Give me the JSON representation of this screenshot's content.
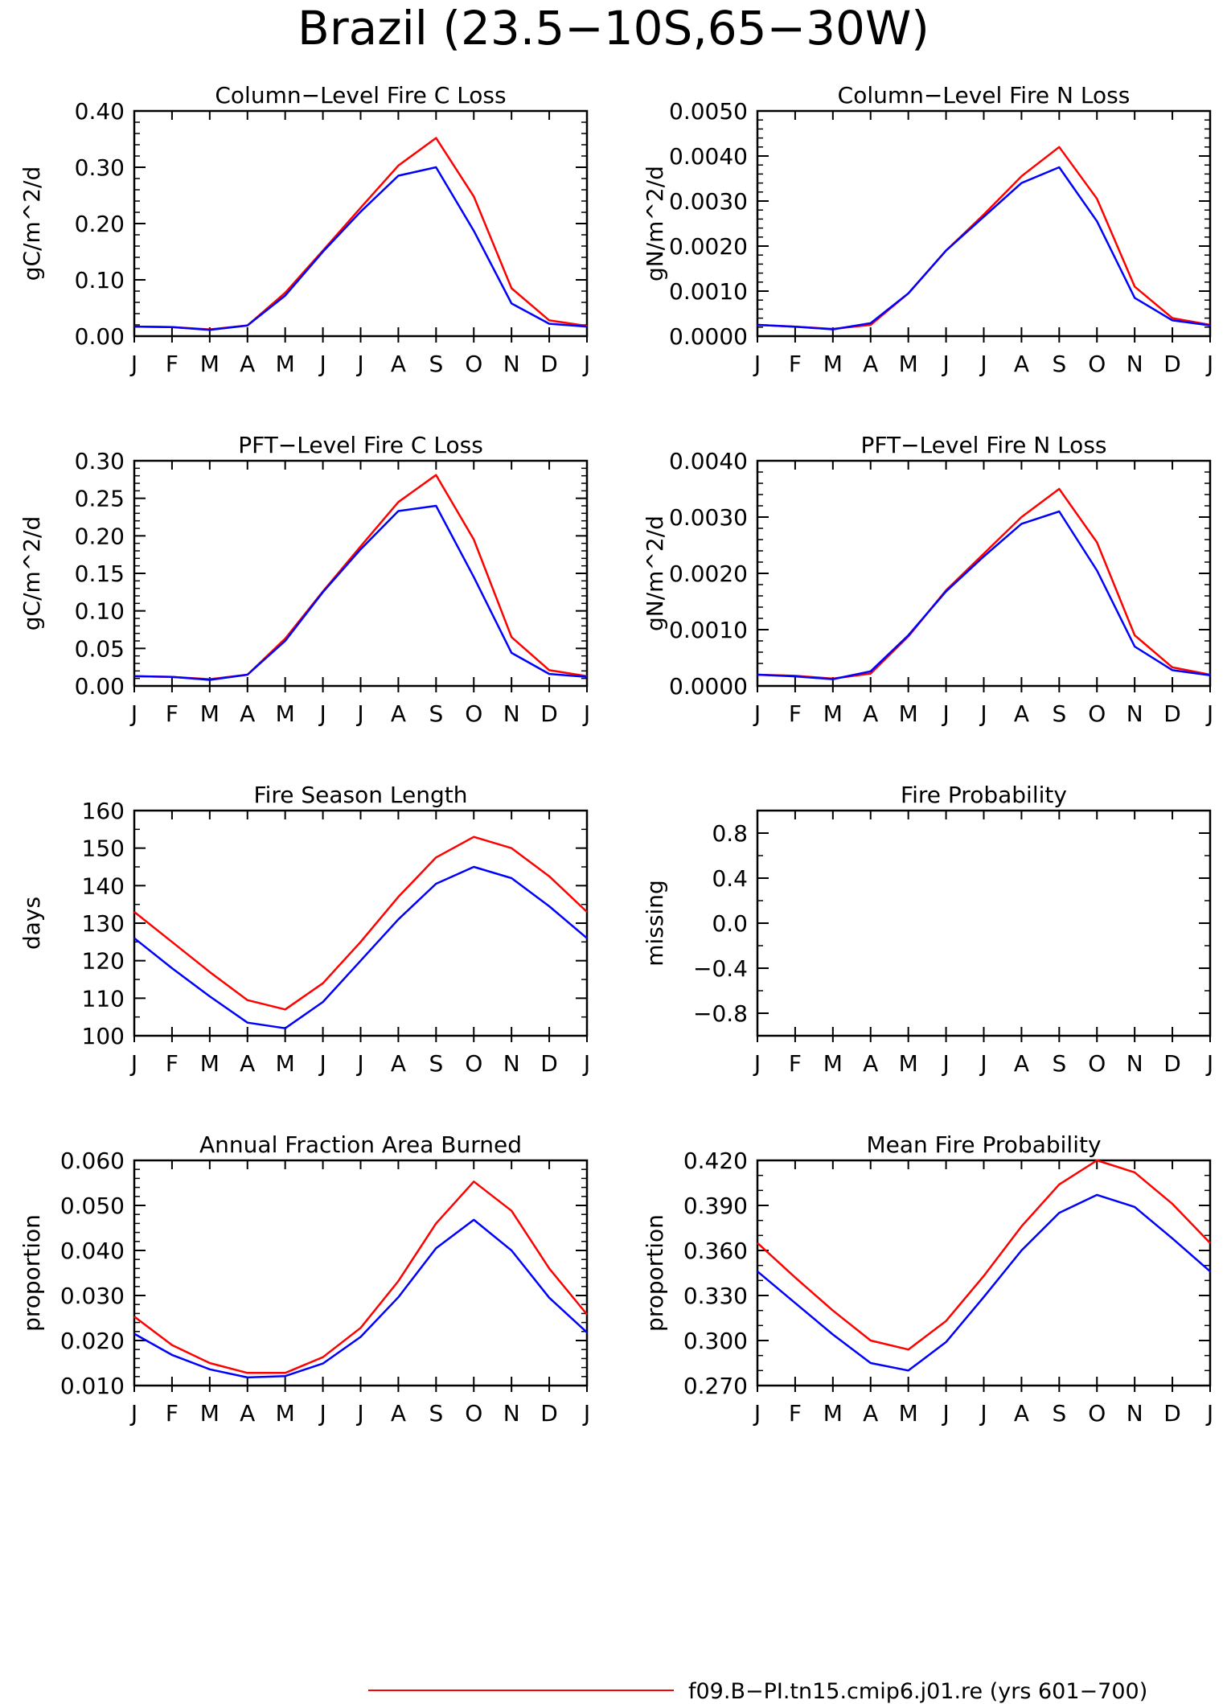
{
  "figure_title": "Brazil (23.5−10S,65−30W)",
  "month_labels": [
    "J",
    "F",
    "M",
    "A",
    "M",
    "J",
    "J",
    "A",
    "S",
    "O",
    "N",
    "D",
    "J"
  ],
  "legend": {
    "label": "f09.B−PI.tn15.cmip6.j01.re (yrs 601−700)",
    "color": "#ff0000"
  },
  "colors": {
    "series_a": "#ff0000",
    "series_b": "#0000ff",
    "axis": "#000000"
  },
  "chart_data": [
    {
      "type": "line",
      "title": "Column−Level Fire C Loss",
      "ylabel": "gC/m^2/d",
      "ylim": [
        0,
        0.4
      ],
      "yticks": [
        "0.00",
        "0.10",
        "0.20",
        "0.30",
        "0.40"
      ],
      "yminor": 5,
      "x": [
        "J",
        "F",
        "M",
        "A",
        "M",
        "J",
        "J",
        "A",
        "S",
        "O",
        "N",
        "D",
        "J"
      ],
      "series": [
        {
          "values": [
            0.017,
            0.016,
            0.012,
            0.019,
            0.077,
            0.152,
            0.228,
            0.303,
            0.352,
            0.248,
            0.085,
            0.028,
            0.018
          ]
        },
        {
          "values": [
            0.017,
            0.016,
            0.011,
            0.019,
            0.072,
            0.15,
            0.221,
            0.285,
            0.3,
            0.187,
            0.058,
            0.022,
            0.017
          ]
        }
      ]
    },
    {
      "type": "line",
      "title": "Column−Level Fire N Loss",
      "ylabel": "gN/m^2/d",
      "ylim": [
        0,
        0.005
      ],
      "yticks": [
        "0.0000",
        "0.0010",
        "0.0020",
        "0.0030",
        "0.0040",
        "0.0050"
      ],
      "yminor": 5,
      "x": [
        "J",
        "F",
        "M",
        "A",
        "M",
        "J",
        "J",
        "A",
        "S",
        "O",
        "N",
        "D",
        "J"
      ],
      "series": [
        {
          "values": [
            0.00025,
            0.00021,
            0.00016,
            0.00025,
            0.00095,
            0.0019,
            0.0027,
            0.00355,
            0.0042,
            0.00305,
            0.0011,
            0.0004,
            0.00025
          ]
        },
        {
          "values": [
            0.00025,
            0.00021,
            0.00015,
            0.00029,
            0.00095,
            0.0019,
            0.00265,
            0.0034,
            0.00375,
            0.00255,
            0.00085,
            0.00035,
            0.00024
          ]
        }
      ]
    },
    {
      "type": "line",
      "title": "PFT−Level Fire C Loss",
      "ylabel": "gC/m^2/d",
      "ylim": [
        0,
        0.3
      ],
      "yticks": [
        "0.00",
        "0.05",
        "0.10",
        "0.15",
        "0.20",
        "0.25",
        "0.30"
      ],
      "yminor": 5,
      "x": [
        "J",
        "F",
        "M",
        "A",
        "M",
        "J",
        "J",
        "A",
        "S",
        "O",
        "N",
        "D",
        "J"
      ],
      "series": [
        {
          "values": [
            0.013,
            0.012,
            0.009,
            0.015,
            0.063,
            0.126,
            0.186,
            0.245,
            0.281,
            0.195,
            0.065,
            0.021,
            0.013
          ]
        },
        {
          "values": [
            0.013,
            0.012,
            0.008,
            0.015,
            0.06,
            0.125,
            0.182,
            0.233,
            0.24,
            0.145,
            0.044,
            0.016,
            0.012
          ]
        }
      ]
    },
    {
      "type": "line",
      "title": "PFT−Level Fire N Loss",
      "ylabel": "gN/m^2/d",
      "ylim": [
        0,
        0.004
      ],
      "yticks": [
        "0.0000",
        "0.0010",
        "0.0020",
        "0.0030",
        "0.0040"
      ],
      "yminor": 5,
      "x": [
        "J",
        "F",
        "M",
        "A",
        "M",
        "J",
        "J",
        "A",
        "S",
        "O",
        "N",
        "D",
        "J"
      ],
      "series": [
        {
          "values": [
            0.0002,
            0.00018,
            0.00013,
            0.00022,
            0.00088,
            0.0017,
            0.00235,
            0.003,
            0.0035,
            0.00255,
            0.0009,
            0.00033,
            0.0002
          ]
        },
        {
          "values": [
            0.0002,
            0.00017,
            0.00012,
            0.00026,
            0.0009,
            0.00168,
            0.0023,
            0.00288,
            0.0031,
            0.00205,
            0.0007,
            0.00028,
            0.00019
          ]
        }
      ]
    },
    {
      "type": "line",
      "title": "Fire Season Length",
      "ylabel": "days",
      "ylim": [
        100,
        160
      ],
      "yticks": [
        "100",
        "110",
        "120",
        "130",
        "140",
        "150",
        "160"
      ],
      "yminor": 2,
      "x": [
        "J",
        "F",
        "M",
        "A",
        "M",
        "J",
        "J",
        "A",
        "S",
        "O",
        "N",
        "D",
        "J"
      ],
      "series": [
        {
          "values": [
            133,
            125,
            117,
            109.5,
            107,
            114,
            125,
            137,
            147.5,
            153,
            150,
            142.5,
            133
          ]
        },
        {
          "values": [
            126,
            118,
            110.5,
            103.5,
            102,
            109,
            120,
            131,
            140.5,
            145,
            142,
            134.5,
            126
          ]
        }
      ]
    },
    {
      "type": "line",
      "title": "Fire Probability",
      "ylabel": "missing",
      "ylim": [
        -1,
        1
      ],
      "yticks": [
        "−0.8",
        "−0.4",
        "0.0",
        "0.4",
        "0.8"
      ],
      "ytick_values": [
        -0.8,
        -0.4,
        0.0,
        0.4,
        0.8
      ],
      "yminor": 2,
      "x": [
        "J",
        "F",
        "M",
        "A",
        "M",
        "J",
        "J",
        "A",
        "S",
        "O",
        "N",
        "D",
        "J"
      ],
      "series": []
    },
    {
      "type": "line",
      "title": "Annual Fraction Area Burned",
      "ylabel": "proportion",
      "ylim": [
        0.01,
        0.06
      ],
      "yticks": [
        "0.010",
        "0.020",
        "0.030",
        "0.040",
        "0.050",
        "0.060"
      ],
      "yminor": 5,
      "x": [
        "J",
        "F",
        "M",
        "A",
        "M",
        "J",
        "J",
        "A",
        "S",
        "O",
        "N",
        "D",
        "J"
      ],
      "series": [
        {
          "values": [
            0.0253,
            0.019,
            0.015,
            0.0128,
            0.0128,
            0.0163,
            0.0228,
            0.0332,
            0.046,
            0.0553,
            0.0488,
            0.036,
            0.0258
          ]
        },
        {
          "values": [
            0.0215,
            0.0168,
            0.0136,
            0.0118,
            0.0121,
            0.0149,
            0.0208,
            0.0296,
            0.0405,
            0.0468,
            0.04,
            0.0295,
            0.0218
          ]
        }
      ]
    },
    {
      "type": "line",
      "title": "Mean Fire Probability",
      "ylabel": "proportion",
      "ylim": [
        0.27,
        0.42
      ],
      "yticks": [
        "0.270",
        "0.300",
        "0.330",
        "0.360",
        "0.390",
        "0.420"
      ],
      "yminor": 3,
      "x": [
        "J",
        "F",
        "M",
        "A",
        "M",
        "J",
        "J",
        "A",
        "S",
        "O",
        "N",
        "D",
        "J"
      ],
      "series": [
        {
          "values": [
            0.365,
            0.342,
            0.32,
            0.3,
            0.294,
            0.313,
            0.343,
            0.376,
            0.404,
            0.42,
            0.412,
            0.391,
            0.365
          ]
        },
        {
          "values": [
            0.346,
            0.325,
            0.304,
            0.285,
            0.28,
            0.299,
            0.329,
            0.36,
            0.385,
            0.397,
            0.389,
            0.368,
            0.346
          ]
        }
      ]
    }
  ]
}
